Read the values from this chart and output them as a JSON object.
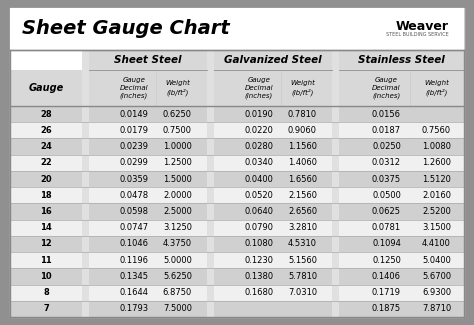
{
  "title": "Sheet Gauge Chart",
  "bg_outer": "#909090",
  "bg_white": "#ffffff",
  "bg_table": "#e8e8e8",
  "col_section_bg": "#ffffff",
  "row_bg_dark": "#d0d0d0",
  "row_bg_light": "#f0f0f0",
  "header1_bg": "#d8d8d8",
  "divider_color": "#aaaaaa",
  "border_color": "#888888",
  "gauges": [
    28,
    26,
    24,
    22,
    20,
    18,
    16,
    14,
    12,
    11,
    10,
    8,
    7
  ],
  "sheet_steel_decimal": [
    "0.0149",
    "0.0179",
    "0.0239",
    "0.0299",
    "0.0359",
    "0.0478",
    "0.0598",
    "0.0747",
    "0.1046",
    "0.1196",
    "0.1345",
    "0.1644",
    "0.1793"
  ],
  "sheet_steel_weight": [
    "0.6250",
    "0.7500",
    "1.0000",
    "1.2500",
    "1.5000",
    "2.0000",
    "2.5000",
    "3.1250",
    "4.3750",
    "5.0000",
    "5.6250",
    "6.8750",
    "7.5000"
  ],
  "galv_decimal": [
    "0.0190",
    "0.0220",
    "0.0280",
    "0.0340",
    "0.0400",
    "0.0520",
    "0.0640",
    "0.0790",
    "0.1080",
    "0.1230",
    "0.1380",
    "0.1680",
    ""
  ],
  "galv_weight": [
    "0.7810",
    "0.9060",
    "1.1560",
    "1.4060",
    "1.6560",
    "2.1560",
    "2.6560",
    "3.2810",
    "4.5310",
    "5.1560",
    "5.7810",
    "7.0310",
    ""
  ],
  "ss_decimal": [
    "0.0156",
    "0.0187",
    "0.0250",
    "0.0312",
    "0.0375",
    "0.0500",
    "0.0625",
    "0.0781",
    "0.1094",
    "0.1250",
    "0.1406",
    "0.1719",
    "0.1875"
  ],
  "ss_weight": [
    "",
    "0.7560",
    "1.0080",
    "1.2600",
    "1.5120",
    "2.0160",
    "2.5200",
    "3.1500",
    "4.4100",
    "5.0400",
    "5.6700",
    "6.9300",
    "7.8710"
  ]
}
